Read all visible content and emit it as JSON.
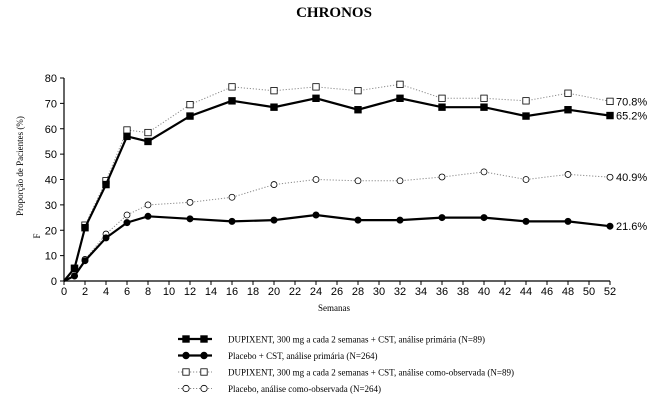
{
  "chart_data": {
    "type": "line",
    "title": "CHRONOS",
    "xlabel": "Semanas",
    "ylabel": "Proporção de Pacientes (%)",
    "ylabel_extra": "F",
    "x": [
      0,
      1,
      2,
      4,
      6,
      8,
      12,
      16,
      20,
      24,
      28,
      32,
      36,
      40,
      44,
      48,
      52
    ],
    "xlim": [
      0,
      52
    ],
    "ylim": [
      0,
      80
    ],
    "x_ticks": [
      0,
      2,
      4,
      6,
      8,
      10,
      12,
      14,
      16,
      18,
      20,
      22,
      24,
      26,
      28,
      30,
      32,
      34,
      36,
      38,
      40,
      42,
      44,
      46,
      48,
      50,
      52
    ],
    "y_ticks": [
      0,
      10,
      20,
      30,
      40,
      50,
      60,
      70,
      80
    ],
    "grid": false,
    "legend_position": "bottom",
    "series": [
      {
        "name": "DUPIXENT, 300 mg a cada 2 semanas + CST, análise primária (N=89)",
        "style": "solid-filled-square",
        "values": [
          0,
          5,
          21,
          38,
          57,
          55,
          65,
          71,
          68.5,
          72,
          67.5,
          72,
          68.5,
          68.5,
          65,
          67.5,
          65.2
        ],
        "end_label": "65.2%"
      },
      {
        "name": "Placebo + CST, análise primária (N=264)",
        "style": "solid-filled-circle",
        "values": [
          0,
          2,
          8,
          17,
          23,
          25.5,
          24.5,
          23.5,
          24,
          26,
          24,
          24,
          25,
          25,
          23.5,
          23.5,
          21.6
        ],
        "end_label": "21.6%"
      },
      {
        "name": "DUPIXENT, 300 mg a cada 2 semanas + CST, análise como-observada (N=89)",
        "style": "dotted-open-square",
        "values": [
          0,
          5,
          22,
          39.5,
          59.5,
          58.5,
          69.5,
          76.5,
          75,
          76.5,
          75,
          77.5,
          72,
          72,
          71,
          74,
          70.8
        ],
        "end_label": "70.8%"
      },
      {
        "name": "Placebo, análise como-observada (N=264)",
        "style": "dotted-open-circle",
        "values": [
          0,
          2,
          8.5,
          18.5,
          26,
          30,
          31,
          33,
          38,
          40,
          39.5,
          39.5,
          41,
          43,
          40,
          42,
          40.9
        ],
        "end_label": "40.9%"
      }
    ]
  }
}
